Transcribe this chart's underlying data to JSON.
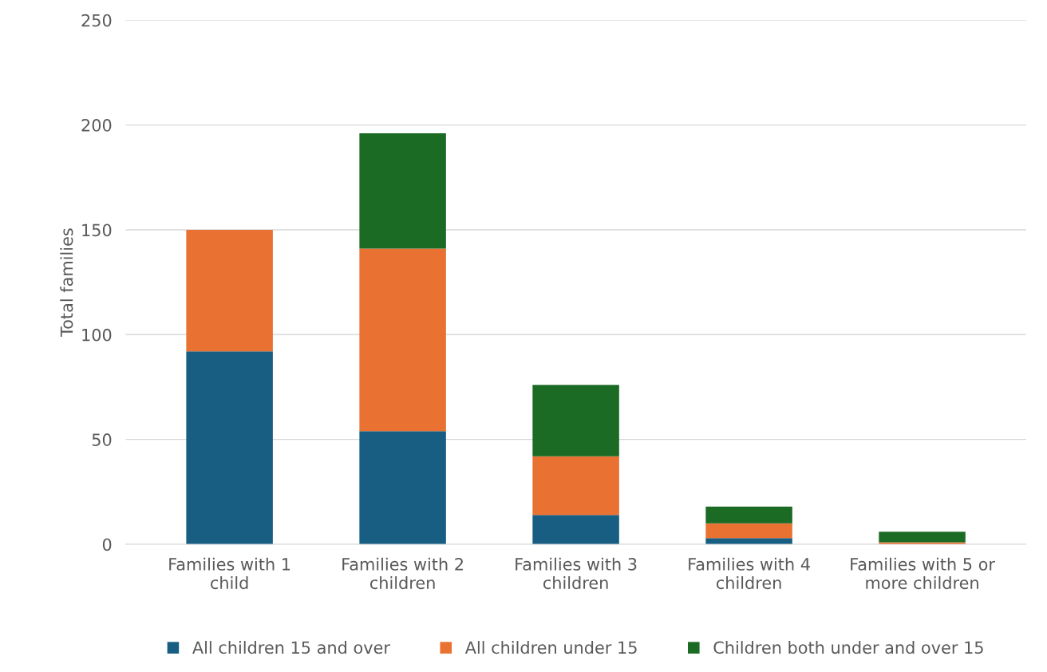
{
  "chart_data": {
    "type": "bar",
    "stacked": true,
    "ylabel": "Total families",
    "categories": [
      "Families with 1\nchild",
      "Families with 2\nchildren",
      "Families with 3\nchildren",
      "Families with 4\nchildren",
      "Families with 5 or\nmore children"
    ],
    "series": [
      {
        "name": "All children 15 and over",
        "color": "#175e82",
        "values": [
          92,
          54,
          14,
          3,
          0
        ]
      },
      {
        "name": "All children under 15",
        "color": "#e97132",
        "values": [
          58,
          87,
          28,
          7,
          1
        ]
      },
      {
        "name": "Children both under and over 15",
        "color": "#1b6b24",
        "values": [
          0,
          55,
          34,
          8,
          5
        ]
      }
    ],
    "ylim": [
      0,
      250
    ],
    "yticks": [
      0,
      50,
      100,
      150,
      200,
      250
    ],
    "grid": "y",
    "legend": "bottom"
  }
}
